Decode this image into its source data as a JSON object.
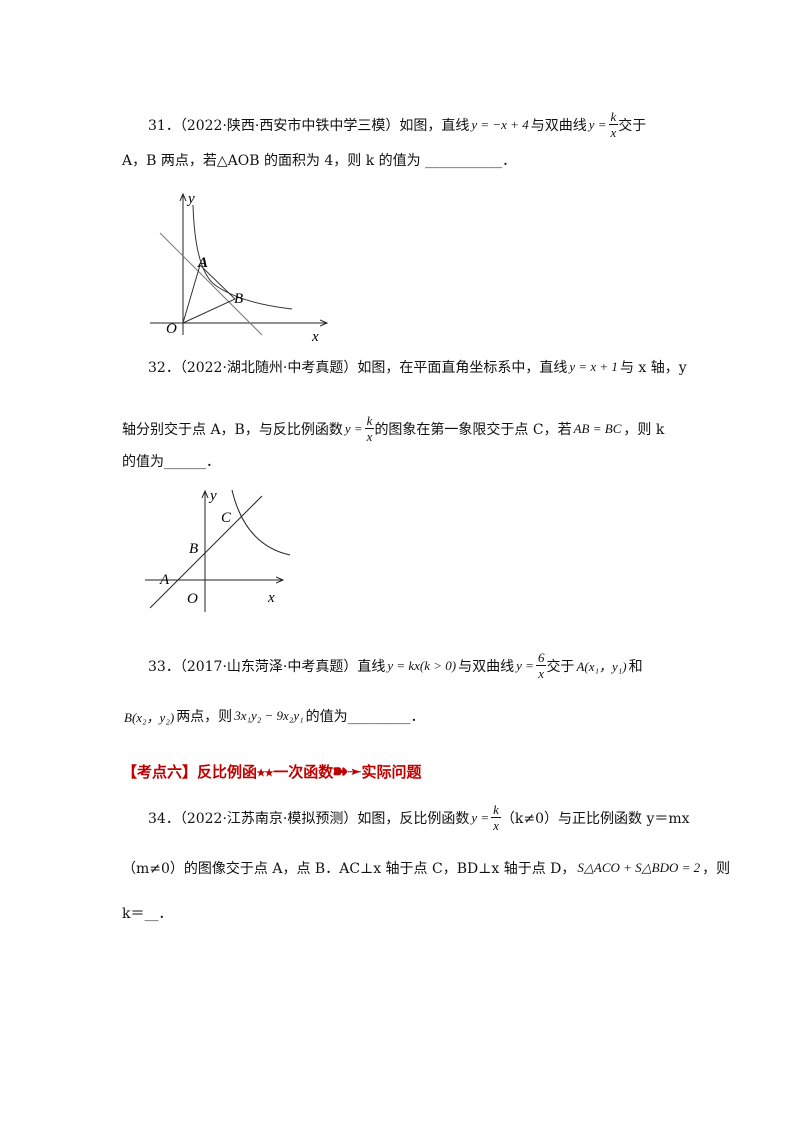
{
  "problems": [
    {
      "lines": [
        [
          "31．（2022·陕西·西安市中铁中学三模）如图，直线",
          {
            "math": "y = −x + 4"
          },
          "与双曲线",
          {
            "lhs": "y =",
            "num": "k",
            "den": "x"
          },
          "交于"
        ],
        [
          "A，B 两点，若△AOB 的面积为 4，则 k 的值为 ___________．"
        ]
      ],
      "figure": {
        "labels": [
          "y",
          "A",
          "B",
          "O",
          "x"
        ]
      }
    },
    {
      "lines": [
        [
          "32．（2022·湖北随州·中考真题）如图，在平面直角坐标系中，直线",
          {
            "math": "y = x + 1"
          },
          "与 x 轴，y"
        ],
        [
          "轴分别交于点 A，B，与反比例函数",
          {
            "lhs": "y =",
            "num": "k",
            "den": "x"
          },
          "的图象在第一象限交于点 C，若",
          {
            "math": "AB = BC"
          },
          "，则 k"
        ],
        [
          "的值为______．"
        ]
      ],
      "figure": {
        "labels": [
          "y",
          "C",
          "B",
          "A",
          "O",
          "x"
        ]
      }
    },
    {
      "lines": [
        [
          "33．（2017·山东菏泽·中考真题）直线",
          {
            "math": "y = kx(k > 0)"
          },
          "与双曲线",
          {
            "lhs": "y =",
            "num": "6",
            "den": "x"
          },
          "交于",
          {
            "math": "A(x₁，y₁)"
          },
          "和"
        ],
        [
          {
            "math": "B(x₂，y₂)"
          },
          "两点，则",
          {
            "math": "3x₁y₂ − 9x₂y₁"
          },
          "的值为_________．"
        ]
      ]
    },
    {
      "heading": "【考点六】反比例函⭑⭑一次函数➽➛实际问题"
    },
    {
      "lines": [
        [
          "34．（2022·江苏南京·模拟预测）如图，反比例函数",
          {
            "lhs": "y =",
            "num": "k",
            "den": "x"
          },
          "（k≠0）与正比例函数 y＝mx"
        ],
        [
          "（m≠0）的图像交于点 A，点 B．AC⊥x 轴于点 C，BD⊥x 轴于点 D，",
          {
            "math": "S△ACO + S△BDO = 2"
          },
          "，则"
        ],
        [
          "k＝__．"
        ]
      ]
    }
  ]
}
